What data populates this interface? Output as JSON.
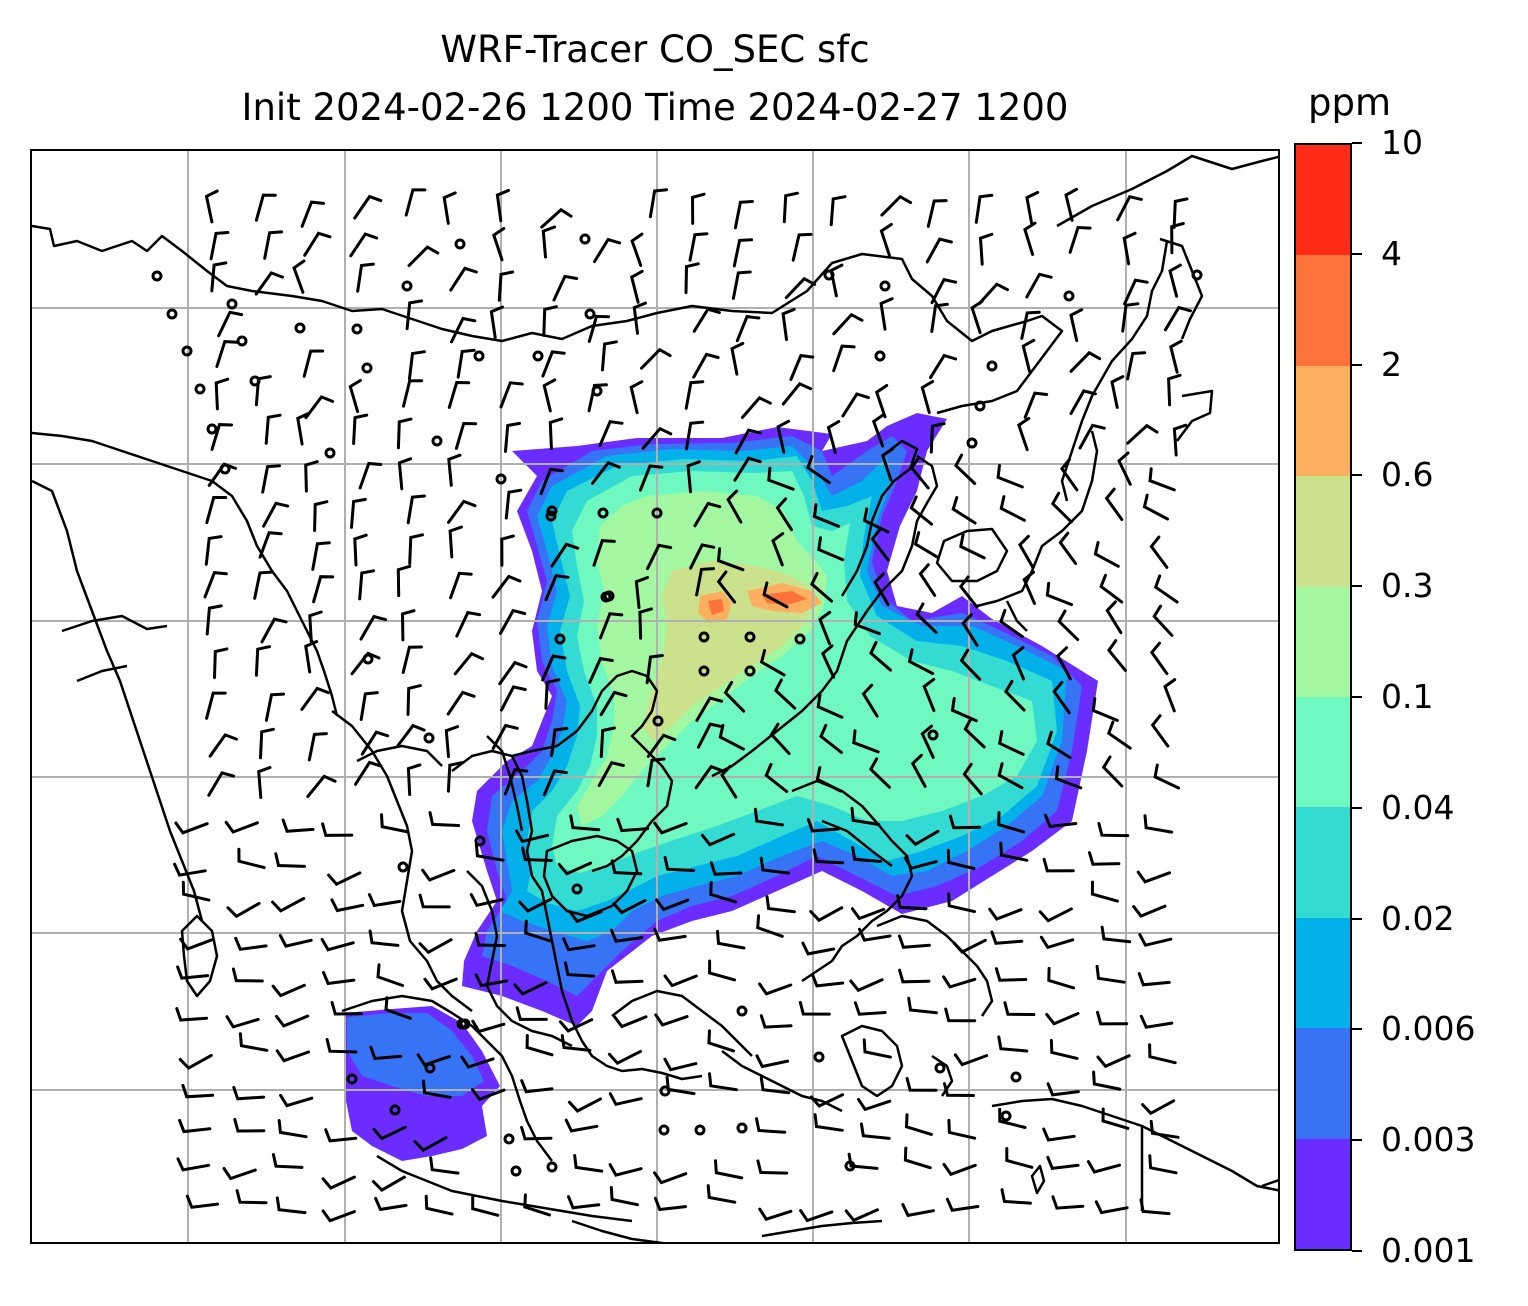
{
  "title": {
    "line1": "WRF-Tracer CO_SEC sfc",
    "line2": "Init 2024-02-26 1200 Time 2024-02-27 1200"
  },
  "colorbar": {
    "unit": "ppm",
    "levels": [
      "0.001",
      "0.003",
      "0.006",
      "0.02",
      "0.04",
      "0.1",
      "0.3",
      "0.6",
      "2",
      "4",
      "10"
    ],
    "colors": [
      "#6a2cff",
      "#3773f5",
      "#03b0ea",
      "#33dbd2",
      "#6ff8bf",
      "#a3f7a1",
      "#cce18b",
      "#fbb060",
      "#fe7339",
      "#ff2b17"
    ]
  },
  "map": {
    "gridlines": true,
    "line_color": "#000000",
    "grid_color": "#b0b0b0"
  }
}
